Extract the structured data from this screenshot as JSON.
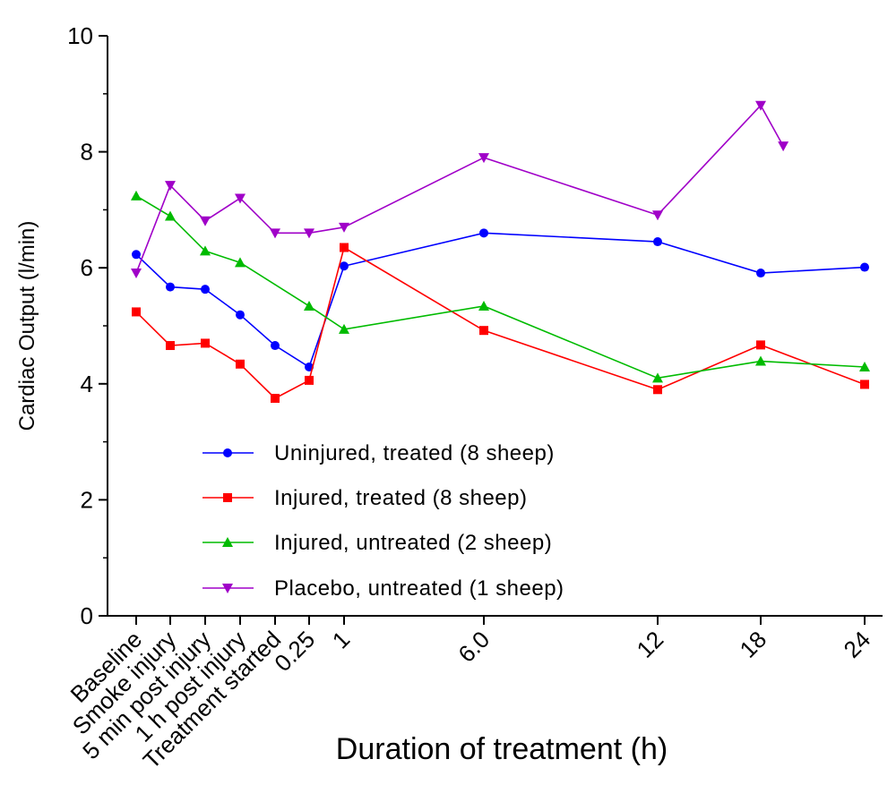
{
  "chart_data": {
    "type": "line",
    "xlabel": "Duration of treatment (h)",
    "ylabel": "Cardiac Output (l/min)",
    "ylim": [
      0,
      10
    ],
    "yticks": [
      "0",
      "2",
      "4",
      "6",
      "8",
      "10"
    ],
    "categories": [
      "Baseline",
      "Smoke injury",
      "5 min post injury",
      "1 h post injury",
      "Treatment started",
      "0.25",
      "1",
      "6.0",
      "12",
      "18",
      "24"
    ],
    "grid": false,
    "legend_position": "lower-center",
    "series": [
      {
        "name": "Uninjured, treated (8 sheep)",
        "color": "#0000ff",
        "marker": "circle",
        "values": [
          6.23,
          5.67,
          5.63,
          5.19,
          4.66,
          4.29,
          6.03,
          6.6,
          6.45,
          5.91,
          6.01
        ]
      },
      {
        "name": "Injured, treated (8 sheep)",
        "color": "#ff0000",
        "marker": "square",
        "values": [
          5.24,
          4.66,
          4.7,
          4.34,
          3.75,
          4.06,
          6.35,
          4.92,
          3.9,
          4.67,
          3.99
        ]
      },
      {
        "name": "Injured, untreated (2 sheep)",
        "color": "#00bb00",
        "marker": "triangle-up",
        "values": [
          7.24,
          6.89,
          6.29,
          6.09,
          null,
          5.34,
          4.94,
          5.34,
          4.1,
          4.39,
          4.29
        ]
      },
      {
        "name": "Placebo, untreated (1 sheep)",
        "color": "#a000c8",
        "marker": "triangle-down",
        "values": [
          5.91,
          7.42,
          6.81,
          7.2,
          6.6,
          6.6,
          6.7,
          7.9,
          6.91,
          8.8,
          8.1
        ],
        "x_overrides": {
          "10": 19.3
        }
      }
    ]
  }
}
